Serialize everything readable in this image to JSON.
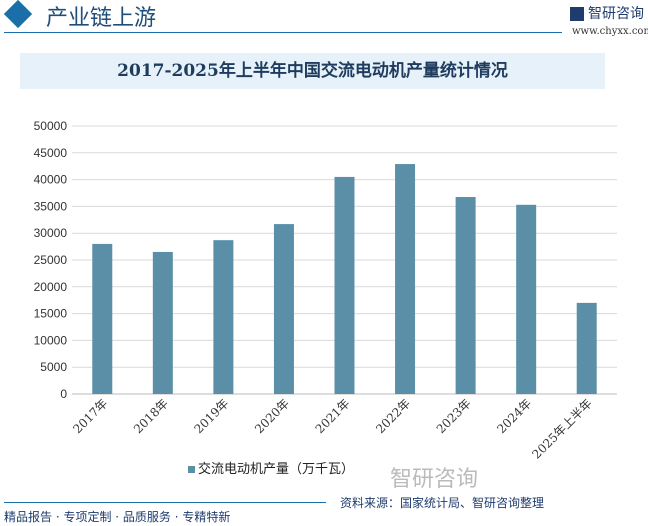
{
  "header": {
    "title": "产业链上游",
    "brand": "智研咨询",
    "url": "www.chyxx.com"
  },
  "chart_data": {
    "type": "bar",
    "title": "2017-2025年上半年中国交流电动机产量统计情况",
    "categories": [
      "2017年",
      "2018年",
      "2019年",
      "2020年",
      "2021年",
      "2022年",
      "2023年",
      "2024年",
      "2025年上半年"
    ],
    "series": [
      {
        "name": "交流电动机产量（万千瓦）",
        "values": [
          28000,
          26500,
          28700,
          31700,
          40500,
          42900,
          36750,
          35300,
          17000
        ]
      }
    ],
    "ylim": [
      0,
      50000
    ],
    "yticks": [
      "0",
      "5000",
      "10000",
      "15000",
      "20000",
      "25000",
      "30000",
      "35000",
      "40000",
      "45000",
      "50000"
    ],
    "grid": true,
    "legend": "bottom",
    "color": "#5b8fa8"
  },
  "footer": {
    "left": "精品报告 · 专项定制 · 品质服务 · 专精特新",
    "source": "资料来源：国家统计局、智研咨询整理",
    "watermark": "智研咨询"
  }
}
